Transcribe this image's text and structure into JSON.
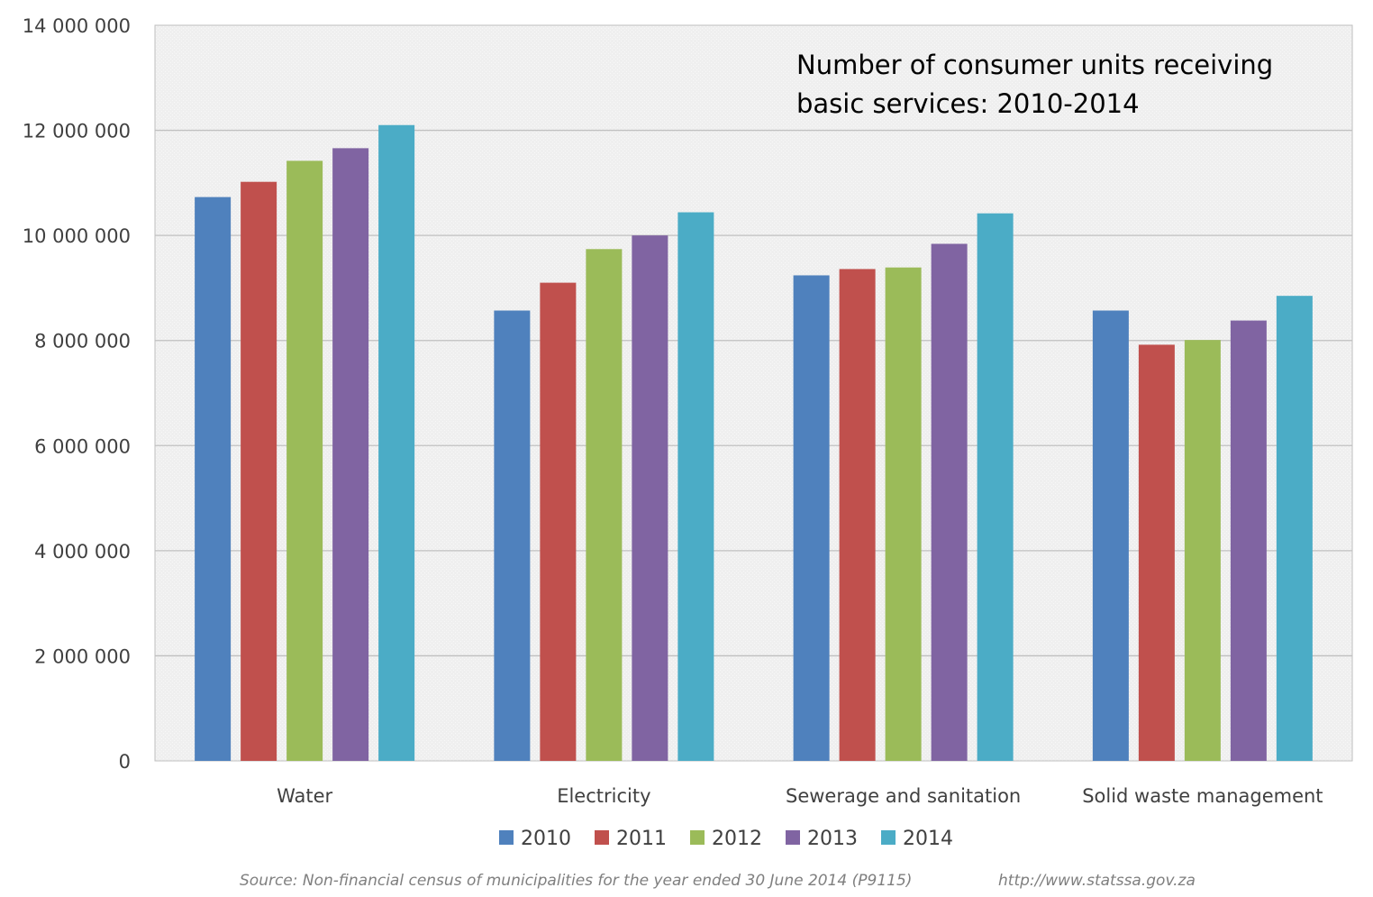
{
  "chart_data": {
    "type": "bar",
    "title": "Number of consumer units receiving basic services: 2010-2014",
    "title_lines": [
      "Number of consumer units receiving",
      "basic services: 2010-2014"
    ],
    "xlabel": "",
    "ylabel": "",
    "categories": [
      "Water",
      "Electricity",
      "Sewerage and sanitation",
      "Solid waste management"
    ],
    "series": [
      {
        "name": "2010",
        "color": "#4f81bd",
        "values": [
          10730000,
          8570000,
          9240000,
          8570000
        ]
      },
      {
        "name": "2011",
        "color": "#c0504d",
        "values": [
          11020000,
          9100000,
          9360000,
          7920000
        ]
      },
      {
        "name": "2012",
        "color": "#9bbb59",
        "values": [
          11420000,
          9740000,
          9390000,
          8010000
        ]
      },
      {
        "name": "2013",
        "color": "#8064a2",
        "values": [
          11660000,
          10000000,
          9840000,
          8380000
        ]
      },
      {
        "name": "2014",
        "color": "#4bacc6",
        "values": [
          12100000,
          10440000,
          10420000,
          8850000
        ]
      }
    ],
    "ylim": [
      0,
      14000000
    ],
    "yticks": [
      0,
      2000000,
      4000000,
      6000000,
      8000000,
      10000000,
      12000000,
      14000000
    ],
    "ytick_labels": [
      "0",
      "2 000 000",
      "4 000 000",
      "6 000 000",
      "8 000 000",
      "10 000 000",
      "12 000 000",
      "14 000 000"
    ],
    "grid": true,
    "legend_position": "bottom",
    "source_note": "Source: Non-financial census of municipalities for the year ended 30 June 2014 (P9115)",
    "source_url": "http://www.statssa.gov.za"
  }
}
